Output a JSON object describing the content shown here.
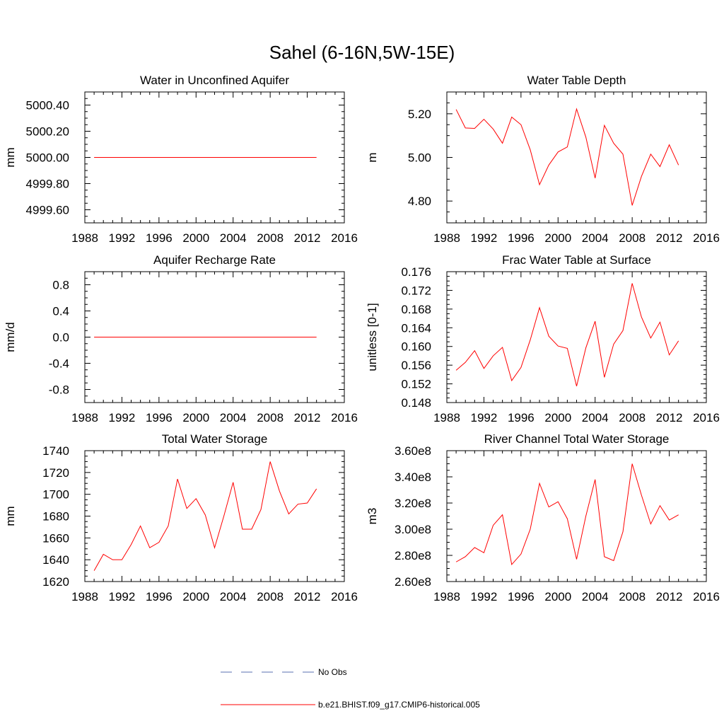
{
  "title": "Sahel (6-16N,5W-15E)",
  "colors": {
    "model": "#ff0000",
    "obs": "#5a6fb0",
    "axis": "#000000"
  },
  "legend": [
    {
      "label": "No Obs",
      "style": "dashed",
      "color": "#5a6fb0"
    },
    {
      "label": "b.e21.BHIST.f09_g17.CMIP6-historical.005",
      "style": "solid",
      "color": "#ff0000"
    }
  ],
  "chart_data": [
    {
      "type": "line",
      "title": "Water in Unconfined Aquifer",
      "ylabel": "mm",
      "xlim": [
        1988,
        2016
      ],
      "ylim": [
        4999.5,
        5000.5
      ],
      "xticks": [
        1988,
        1992,
        1996,
        2000,
        2004,
        2008,
        2012,
        2016
      ],
      "yticks": [
        "4999.60",
        "4999.80",
        "5000.00",
        "5000.20",
        "5000.40"
      ],
      "x": [
        1989,
        1990,
        1991,
        1992,
        1993,
        1994,
        1995,
        1996,
        1997,
        1998,
        1999,
        2000,
        2001,
        2002,
        2003,
        2004,
        2005,
        2006,
        2007,
        2008,
        2009,
        2010,
        2011,
        2012,
        2013
      ],
      "series": [
        {
          "values": [
            5000,
            5000,
            5000,
            5000,
            5000,
            5000,
            5000,
            5000,
            5000,
            5000,
            5000,
            5000,
            5000,
            5000,
            5000,
            5000,
            5000,
            5000,
            5000,
            5000,
            5000,
            5000,
            5000,
            5000,
            5000
          ]
        }
      ]
    },
    {
      "type": "line",
      "title": "Water Table Depth",
      "ylabel": "m",
      "xlim": [
        1988,
        2016
      ],
      "ylim": [
        4.7,
        5.3
      ],
      "xticks": [
        1988,
        1992,
        1996,
        2000,
        2004,
        2008,
        2012,
        2016
      ],
      "yticks": [
        "4.80",
        "5.00",
        "5.20"
      ],
      "x": [
        1989,
        1990,
        1991,
        1992,
        1993,
        1994,
        1995,
        1996,
        1997,
        1998,
        1999,
        2000,
        2001,
        2002,
        2003,
        2004,
        2005,
        2006,
        2007,
        2008,
        2009,
        2010,
        2011,
        2012,
        2013
      ],
      "series": [
        {
          "values": [
            5.22,
            5.135,
            5.133,
            5.175,
            5.13,
            5.065,
            5.185,
            5.15,
            5.035,
            4.875,
            4.965,
            5.025,
            5.048,
            5.222,
            5.093,
            4.905,
            5.147,
            5.065,
            5.015,
            4.78,
            4.913,
            5.015,
            4.958,
            5.058,
            4.965
          ]
        }
      ]
    },
    {
      "type": "line",
      "title": "Aquifer Recharge Rate",
      "ylabel": "mm/d",
      "xlim": [
        1988,
        2016
      ],
      "ylim": [
        -1,
        1
      ],
      "xticks": [
        1988,
        1992,
        1996,
        2000,
        2004,
        2008,
        2012,
        2016
      ],
      "yticks": [
        "-0.8",
        "-0.4",
        "0.0",
        "0.4",
        "0.8"
      ],
      "x": [
        1989,
        1990,
        1991,
        1992,
        1993,
        1994,
        1995,
        1996,
        1997,
        1998,
        1999,
        2000,
        2001,
        2002,
        2003,
        2004,
        2005,
        2006,
        2007,
        2008,
        2009,
        2010,
        2011,
        2012,
        2013
      ],
      "series": [
        {
          "values": [
            0,
            0,
            0,
            0,
            0,
            0,
            0,
            0,
            0,
            0,
            0,
            0,
            0,
            0,
            0,
            0,
            0,
            0,
            0,
            0,
            0,
            0,
            0,
            0,
            0
          ]
        }
      ]
    },
    {
      "type": "line",
      "title": "Frac Water Table at Surface",
      "ylabel": "unitless [0-1]",
      "xlim": [
        1988,
        2016
      ],
      "ylim": [
        0.148,
        0.176
      ],
      "xticks": [
        1988,
        1992,
        1996,
        2000,
        2004,
        2008,
        2012,
        2016
      ],
      "yticks": [
        "0.148",
        "0.152",
        "0.156",
        "0.160",
        "0.164",
        "0.168",
        "0.172",
        "0.176"
      ],
      "x": [
        1989,
        1990,
        1991,
        1992,
        1993,
        1994,
        1995,
        1996,
        1997,
        1998,
        1999,
        2000,
        2001,
        2002,
        2003,
        2004,
        2005,
        2006,
        2007,
        2008,
        2009,
        2010,
        2011,
        2012,
        2013
      ],
      "series": [
        {
          "values": [
            0.1549,
            0.1566,
            0.1591,
            0.1553,
            0.158,
            0.1598,
            0.1527,
            0.1555,
            0.1614,
            0.1683,
            0.1622,
            0.1601,
            0.1596,
            0.1515,
            0.1597,
            0.1654,
            0.1534,
            0.1605,
            0.1634,
            0.1735,
            0.1663,
            0.1618,
            0.1652,
            0.1582,
            0.1612
          ]
        }
      ]
    },
    {
      "type": "line",
      "title": "Total Water Storage",
      "ylabel": "mm",
      "xlim": [
        1988,
        2016
      ],
      "ylim": [
        1620,
        1740
      ],
      "xticks": [
        1988,
        1992,
        1996,
        2000,
        2004,
        2008,
        2012,
        2016
      ],
      "yticks": [
        "1620",
        "1640",
        "1660",
        "1680",
        "1700",
        "1720",
        "1740"
      ],
      "x": [
        1989,
        1990,
        1991,
        1992,
        1993,
        1994,
        1995,
        1996,
        1997,
        1998,
        1999,
        2000,
        2001,
        2002,
        2003,
        2004,
        2005,
        2006,
        2007,
        2008,
        2009,
        2010,
        2011,
        2012,
        2013
      ],
      "series": [
        {
          "values": [
            1630,
            1645,
            1640,
            1640,
            1654,
            1671,
            1651,
            1656,
            1671,
            1714,
            1687,
            1696,
            1681,
            1651,
            1680,
            1711,
            1668,
            1668,
            1686,
            1730,
            1703,
            1682,
            1691,
            1692,
            1705
          ]
        }
      ]
    },
    {
      "type": "line",
      "title": "River Channel Total Water Storage",
      "ylabel": "m3",
      "xlim": [
        1988,
        2016
      ],
      "ylim": [
        260000000,
        360000000
      ],
      "xticks": [
        1988,
        1992,
        1996,
        2000,
        2004,
        2008,
        2012,
        2016
      ],
      "yticks": [
        "2.60e8",
        "2.80e8",
        "3.00e8",
        "3.20e8",
        "3.40e8",
        "3.60e8"
      ],
      "x": [
        1989,
        1990,
        1991,
        1992,
        1993,
        1994,
        1995,
        1996,
        1997,
        1998,
        1999,
        2000,
        2001,
        2002,
        2003,
        2004,
        2005,
        2006,
        2007,
        2008,
        2009,
        2010,
        2011,
        2012,
        2013
      ],
      "series": [
        {
          "values": [
            275000000,
            279000000,
            286000000,
            282000000,
            303000000,
            311000000,
            273000000,
            281000000,
            300000000,
            335000000,
            317000000,
            321000000,
            308000000,
            277000000,
            310000000,
            338000000,
            279000000,
            276000000,
            298000000,
            350000000,
            326000000,
            304000000,
            318000000,
            307000000,
            311000000
          ]
        }
      ]
    }
  ]
}
